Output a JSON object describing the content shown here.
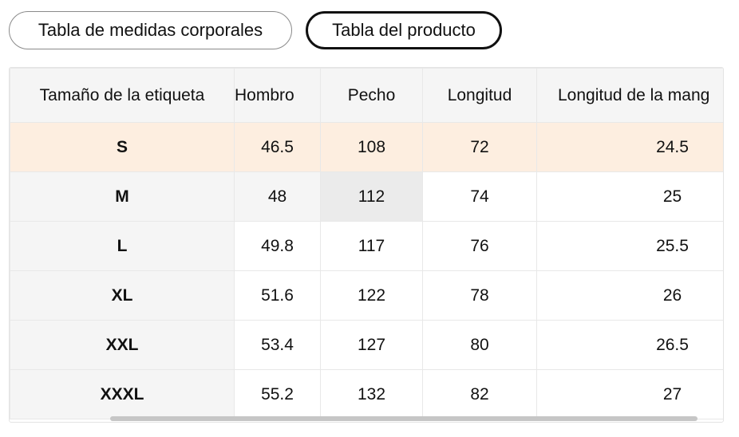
{
  "tabs": {
    "body_measurements": "Tabla de medidas corporales",
    "product": "Tabla del producto"
  },
  "table": {
    "headers": [
      "Tamaño de la etiqueta",
      "Hombro",
      "Pecho",
      "Longitud",
      "Longitud de la mang"
    ],
    "rows": [
      [
        "S",
        "46.5",
        "108",
        "72",
        "24.5"
      ],
      [
        "M",
        "48",
        "112",
        "74",
        "25"
      ],
      [
        "L",
        "49.8",
        "117",
        "76",
        "25.5"
      ],
      [
        "XL",
        "51.6",
        "122",
        "78",
        "26"
      ],
      [
        "XXL",
        "53.4",
        "127",
        "80",
        "26.5"
      ],
      [
        "XXXL",
        "55.2",
        "132",
        "82",
        "27"
      ]
    ],
    "highlighted_row": 0,
    "highlight_color": "#fdeee0"
  }
}
